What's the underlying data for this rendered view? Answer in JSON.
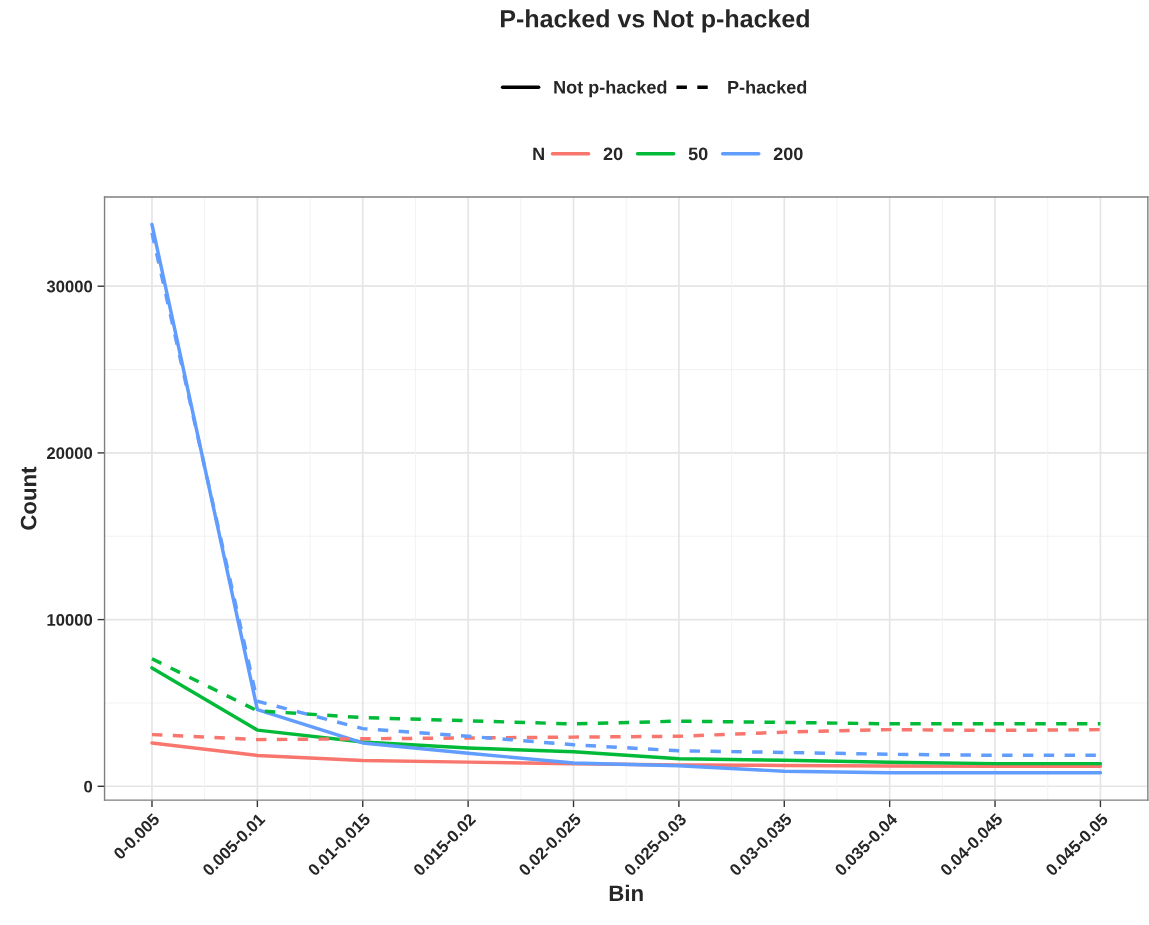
{
  "chart_data": {
    "type": "line",
    "title": "P-hacked vs Not p-hacked",
    "xlabel": "Bin",
    "ylabel": "Count",
    "legend_title": "N",
    "categories": [
      "0-0.005",
      "0.005-0.01",
      "0.01-0.015",
      "0.015-0.02",
      "0.02-0.025",
      "0.025-0.03",
      "0.03-0.035",
      "0.035-0.04",
      "0.04-0.045",
      "0.045-0.05"
    ],
    "series": [
      {
        "name": "20",
        "color": "#f8766d",
        "line_style": "solid",
        "values": [
          2600,
          1850,
          1550,
          1450,
          1350,
          1280,
          1250,
          1220,
          1200,
          1200
        ]
      },
      {
        "name": "50",
        "color": "#00ba38",
        "line_style": "solid",
        "values": [
          7100,
          3370,
          2660,
          2300,
          2070,
          1650,
          1560,
          1440,
          1360,
          1360
        ]
      },
      {
        "name": "200",
        "color": "#619cff",
        "line_style": "solid",
        "values": [
          33700,
          4600,
          2600,
          1980,
          1400,
          1230,
          900,
          810,
          810,
          810
        ]
      },
      {
        "color": "#f8766d",
        "line_style": "dashed",
        "values": [
          3100,
          2800,
          2850,
          2900,
          2950,
          3000,
          3250,
          3400,
          3350,
          3400
        ]
      },
      {
        "color": "#00ba38",
        "line_style": "dashed",
        "values": [
          7650,
          4530,
          4120,
          3930,
          3740,
          3910,
          3830,
          3750,
          3750,
          3750
        ]
      },
      {
        "color": "#619cff",
        "line_style": "dashed",
        "values": [
          33200,
          5100,
          3460,
          3000,
          2490,
          2130,
          2030,
          1920,
          1860,
          1860
        ]
      }
    ],
    "annotations": [
      "Not p-hacked",
      "P-hacked"
    ],
    "ylim": [
      -830,
      35350
    ],
    "yticks": [
      0,
      10000,
      20000,
      30000
    ],
    "grid": true,
    "legend": "top"
  }
}
